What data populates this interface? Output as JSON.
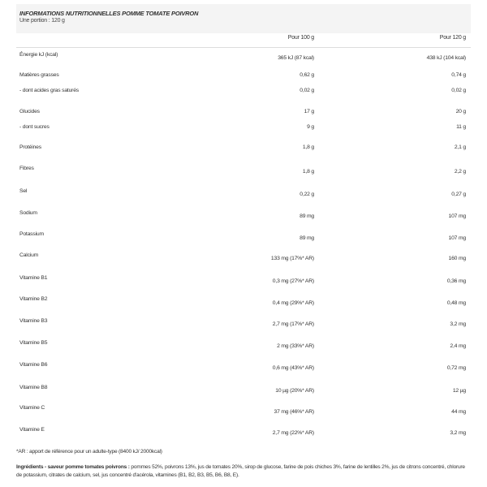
{
  "header": {
    "title": "INFORMATIONS NUTRITIONNELLES POMME TOMATE POIVRON",
    "portion": "Une portion : 120 g"
  },
  "columns": [
    "Pour 100 g",
    "Pour 120 g"
  ],
  "rows": [
    {
      "label": "Énergie kJ (kcal)",
      "per100": "365 kJ (87 kcal)",
      "per120": "438 kJ (104 kcal)"
    },
    {
      "label": "Matières grasses",
      "per100": "0,62 g",
      "per120": "0,74 g"
    },
    {
      "label": "- dont acides gras saturés",
      "per100": "0,02 g",
      "per120": "0,02 g"
    },
    {
      "label": "Glucides",
      "per100": "17 g",
      "per120": "20 g"
    },
    {
      "label": "- dont sucres",
      "per100": "9 g",
      "per120": "11 g"
    },
    {
      "label": "Protéines",
      "per100": "1,8 g",
      "per120": "2,1 g"
    },
    {
      "label": "Fibres",
      "per100": "1,8 g",
      "per120": "2,2 g"
    },
    {
      "label": "Sel",
      "per100": "0,22 g",
      "per120": "0,27 g"
    },
    {
      "label": "Sodium",
      "per100": "89 mg",
      "per120": "107 mg"
    },
    {
      "label": "Potassium",
      "per100": "89 mg",
      "per120": "107 mg"
    },
    {
      "label": "Calcium",
      "per100": "133 mg (17%* AR)",
      "per120": "160 mg"
    },
    {
      "label": "Vitamine B1",
      "per100": "0,3 mg (27%* AR)",
      "per120": "0,36 mg"
    },
    {
      "label": "Vitamine B2",
      "per100": "0,4 mg (29%* AR)",
      "per120": "0,48 mg"
    },
    {
      "label": "Vitamine B3",
      "per100": "2,7 mg (17%* AR)",
      "per120": "3,2 mg"
    },
    {
      "label": "Vitamine B5",
      "per100": "2 mg (33%* AR)",
      "per120": "2,4 mg"
    },
    {
      "label": "Vitamine B6",
      "per100": "0,6 mg (43%* AR)",
      "per120": "0,72 mg"
    },
    {
      "label": "Vitamine B8",
      "per100": "10 µg (20%* AR)",
      "per120": "12 µg"
    },
    {
      "label": "Vitamine C",
      "per100": "37 mg (46%* AR)",
      "per120": "44 mg"
    },
    {
      "label": "Vitamine E",
      "per100": "2,7 mg (22%* AR)",
      "per120": "3,2 mg"
    }
  ],
  "footnote": "*AR : apport de référence pour un adulte-type (8400 kJ/ 2000kcal)",
  "ingredients": {
    "heading": "Ingrédients - saveur pomme tomates poivrons :",
    "text": " pommes 52%, poivrons 13%, jus de tomates 20%, sirop de glucose, farine de pois chiches 3%, farine de lentilles 2%, jus de citrons concentré, chlorure de potassium, citrates de calcium, sel, jus concentré d'acérola, vitamines (B1, B2, B3, B5, B6, B8, E)."
  }
}
